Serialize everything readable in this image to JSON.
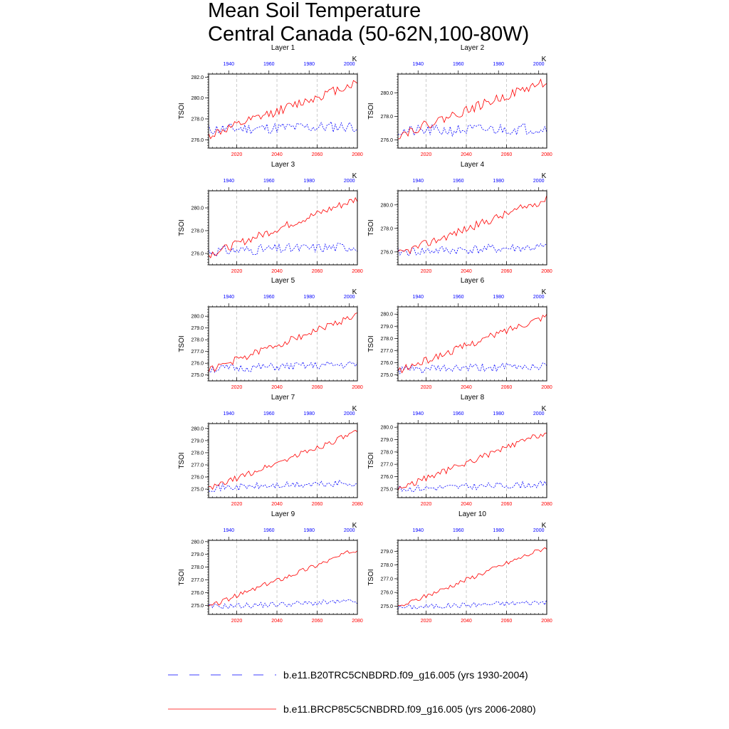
{
  "figure": {
    "title_line1": "Mean Soil Temperature",
    "title_line2": "Central Canada (50-62N,100-80W)",
    "units": "K",
    "ylabel": "TSOI",
    "colors": {
      "historical": "#0000ff",
      "future": "#ff0000",
      "gridline": "#aaaaaa"
    }
  },
  "legend": {
    "historical": "b.e11.B20TRC5CNBDRD.f09_g16.005 (yrs 1930-2004)",
    "future": "b.e11.BRCP85C5CNBDRD.f09_g16.005 (yrs 2006-2080)"
  },
  "chart_data": [
    {
      "type": "line",
      "title": "Layer 1",
      "ylabel": "TSOI",
      "units": "K",
      "xlim_bottom": [
        2006,
        2080
      ],
      "xticks_bottom": [
        "2020",
        "2040",
        "2060",
        "2080"
      ],
      "xlim_top": [
        1930,
        2004
      ],
      "xticks_top": [
        "1940",
        "1960",
        "1980",
        "2000"
      ],
      "ylim": [
        275.2,
        282.3
      ],
      "yticks": [
        "276.0",
        "278.0",
        "280.0",
        "282.0"
      ],
      "series": [
        {
          "name": "b.e11.B20TRC5CNBDRD.f09_g16.005 (yrs 1930-2004)",
          "axis": "top",
          "style": "dashed",
          "start": 277.0,
          "end": 277.3,
          "jitter": 1.1,
          "seed": 11
        },
        {
          "name": "b.e11.BRCP85C5CNBDRD.f09_g16.005 (yrs 2006-2080)",
          "axis": "bottom",
          "style": "solid",
          "start": 276.4,
          "end": 281.5,
          "jitter": 0.9,
          "seed": 12
        }
      ]
    },
    {
      "type": "line",
      "title": "Layer 2",
      "ylabel": "TSOI",
      "units": "K",
      "xlim_bottom": [
        2006,
        2080
      ],
      "xticks_bottom": [
        "2020",
        "2040",
        "2060",
        "2080"
      ],
      "xlim_top": [
        1930,
        2004
      ],
      "xticks_top": [
        "1940",
        "1960",
        "1980",
        "2000"
      ],
      "ylim": [
        275.3,
        281.6
      ],
      "yticks": [
        "276.0",
        "278.0",
        "280.0"
      ],
      "series": [
        {
          "name": "b.e11.B20TRC5CNBDRD.f09_g16.005 (yrs 1930-2004)",
          "axis": "top",
          "style": "dashed",
          "start": 276.7,
          "end": 277.0,
          "jitter": 1.0,
          "seed": 21
        },
        {
          "name": "b.e11.BRCP85C5CNBDRD.f09_g16.005 (yrs 2006-2080)",
          "axis": "bottom",
          "style": "solid",
          "start": 276.4,
          "end": 281.0,
          "jitter": 0.8,
          "seed": 22
        }
      ]
    },
    {
      "type": "line",
      "title": "Layer 3",
      "ylabel": "TSOI",
      "units": "K",
      "xlim_bottom": [
        2006,
        2080
      ],
      "xticks_bottom": [
        "2020",
        "2040",
        "2060",
        "2080"
      ],
      "xlim_top": [
        1930,
        2004
      ],
      "xticks_top": [
        "1940",
        "1960",
        "1980",
        "2000"
      ],
      "ylim": [
        275.0,
        281.5
      ],
      "yticks": [
        "276.0",
        "278.0",
        "280.0"
      ],
      "series": [
        {
          "name": "b.e11.B20TRC5CNBDRD.f09_g16.005 (yrs 1930-2004)",
          "axis": "top",
          "style": "dashed",
          "start": 276.2,
          "end": 276.6,
          "jitter": 0.9,
          "seed": 31
        },
        {
          "name": "b.e11.BRCP85C5CNBDRD.f09_g16.005 (yrs 2006-2080)",
          "axis": "bottom",
          "style": "solid",
          "start": 275.9,
          "end": 280.8,
          "jitter": 0.7,
          "seed": 32
        }
      ]
    },
    {
      "type": "line",
      "title": "Layer 4",
      "ylabel": "TSOI",
      "units": "K",
      "xlim_bottom": [
        2006,
        2080
      ],
      "xticks_bottom": [
        "2020",
        "2040",
        "2060",
        "2080"
      ],
      "xlim_top": [
        1930,
        2004
      ],
      "xticks_top": [
        "1940",
        "1960",
        "1980",
        "2000"
      ],
      "ylim": [
        274.9,
        281.2
      ],
      "yticks": [
        "276.0",
        "278.0",
        "280.0"
      ],
      "series": [
        {
          "name": "b.e11.B20TRC5CNBDRD.f09_g16.005 (yrs 1930-2004)",
          "axis": "top",
          "style": "dashed",
          "start": 276.0,
          "end": 276.4,
          "jitter": 0.8,
          "seed": 41
        },
        {
          "name": "b.e11.BRCP85C5CNBDRD.f09_g16.005 (yrs 2006-2080)",
          "axis": "bottom",
          "style": "solid",
          "start": 275.8,
          "end": 280.5,
          "jitter": 0.7,
          "seed": 42
        }
      ]
    },
    {
      "type": "line",
      "title": "Layer 5",
      "ylabel": "TSOI",
      "units": "K",
      "xlim_bottom": [
        2006,
        2080
      ],
      "xticks_bottom": [
        "2020",
        "2040",
        "2060",
        "2080"
      ],
      "xlim_top": [
        1930,
        2004
      ],
      "xticks_top": [
        "1940",
        "1960",
        "1980",
        "2000"
      ],
      "ylim": [
        274.5,
        280.8
      ],
      "yticks": [
        "275.0",
        "276.0",
        "277.0",
        "278.0",
        "279.0",
        "280.0"
      ],
      "series": [
        {
          "name": "b.e11.B20TRC5CNBDRD.f09_g16.005 (yrs 1930-2004)",
          "axis": "top",
          "style": "dashed",
          "start": 275.5,
          "end": 275.9,
          "jitter": 0.7,
          "seed": 51
        },
        {
          "name": "b.e11.BRCP85C5CNBDRD.f09_g16.005 (yrs 2006-2080)",
          "axis": "bottom",
          "style": "solid",
          "start": 275.4,
          "end": 280.1,
          "jitter": 0.6,
          "seed": 52
        }
      ]
    },
    {
      "type": "line",
      "title": "Layer 6",
      "ylabel": "TSOI",
      "units": "K",
      "xlim_bottom": [
        2006,
        2080
      ],
      "xticks_bottom": [
        "2020",
        "2040",
        "2060",
        "2080"
      ],
      "xlim_top": [
        1930,
        2004
      ],
      "xticks_top": [
        "1940",
        "1960",
        "1980",
        "2000"
      ],
      "ylim": [
        274.5,
        280.6
      ],
      "yticks": [
        "275.0",
        "276.0",
        "277.0",
        "278.0",
        "279.0",
        "280.0"
      ],
      "series": [
        {
          "name": "b.e11.B20TRC5CNBDRD.f09_g16.005 (yrs 1930-2004)",
          "axis": "top",
          "style": "dashed",
          "start": 275.4,
          "end": 275.7,
          "jitter": 0.7,
          "seed": 61
        },
        {
          "name": "b.e11.BRCP85C5CNBDRD.f09_g16.005 (yrs 2006-2080)",
          "axis": "bottom",
          "style": "solid",
          "start": 275.3,
          "end": 279.9,
          "jitter": 0.6,
          "seed": 62
        }
      ]
    },
    {
      "type": "line",
      "title": "Layer 7",
      "ylabel": "TSOI",
      "units": "K",
      "xlim_bottom": [
        2006,
        2080
      ],
      "xticks_bottom": [
        "2020",
        "2040",
        "2060",
        "2080"
      ],
      "xlim_top": [
        1930,
        2004
      ],
      "xticks_top": [
        "1940",
        "1960",
        "1980",
        "2000"
      ],
      "ylim": [
        274.3,
        280.4
      ],
      "yticks": [
        "275.0",
        "276.0",
        "277.0",
        "278.0",
        "279.0",
        "280.0"
      ],
      "series": [
        {
          "name": "b.e11.B20TRC5CNBDRD.f09_g16.005 (yrs 1930-2004)",
          "axis": "top",
          "style": "dashed",
          "start": 275.1,
          "end": 275.5,
          "jitter": 0.6,
          "seed": 71
        },
        {
          "name": "b.e11.BRCP85C5CNBDRD.f09_g16.005 (yrs 2006-2080)",
          "axis": "bottom",
          "style": "solid",
          "start": 275.0,
          "end": 279.7,
          "jitter": 0.5,
          "seed": 72
        }
      ]
    },
    {
      "type": "line",
      "title": "Layer 8",
      "ylabel": "TSOI",
      "units": "K",
      "xlim_bottom": [
        2006,
        2080
      ],
      "xticks_bottom": [
        "2020",
        "2040",
        "2060",
        "2080"
      ],
      "xlim_top": [
        1930,
        2004
      ],
      "xticks_top": [
        "1940",
        "1960",
        "1980",
        "2000"
      ],
      "ylim": [
        274.3,
        280.3
      ],
      "yticks": [
        "275.0",
        "276.0",
        "277.0",
        "278.0",
        "279.0",
        "280.0"
      ],
      "series": [
        {
          "name": "b.e11.B20TRC5CNBDRD.f09_g16.005 (yrs 1930-2004)",
          "axis": "top",
          "style": "dashed",
          "start": 275.0,
          "end": 275.4,
          "jitter": 0.55,
          "seed": 81
        },
        {
          "name": "b.e11.BRCP85C5CNBDRD.f09_g16.005 (yrs 2006-2080)",
          "axis": "bottom",
          "style": "solid",
          "start": 275.0,
          "end": 279.6,
          "jitter": 0.5,
          "seed": 82
        }
      ]
    },
    {
      "type": "line",
      "title": "Layer 9",
      "ylabel": "TSOI",
      "units": "K",
      "xlim_bottom": [
        2006,
        2080
      ],
      "xticks_bottom": [
        "2020",
        "2040",
        "2060",
        "2080"
      ],
      "xlim_top": [
        1930,
        2004
      ],
      "xticks_top": [
        "1940",
        "1960",
        "1980",
        "2000"
      ],
      "ylim": [
        274.3,
        280.1
      ],
      "yticks": [
        "275.0",
        "276.0",
        "277.0",
        "278.0",
        "279.0",
        "280.0"
      ],
      "series": [
        {
          "name": "b.e11.B20TRC5CNBDRD.f09_g16.005 (yrs 1930-2004)",
          "axis": "top",
          "style": "dashed",
          "start": 274.9,
          "end": 275.3,
          "jitter": 0.45,
          "seed": 91
        },
        {
          "name": "b.e11.BRCP85C5CNBDRD.f09_g16.005 (yrs 2006-2080)",
          "axis": "bottom",
          "style": "solid",
          "start": 274.9,
          "end": 279.4,
          "jitter": 0.4,
          "seed": 92
        }
      ]
    },
    {
      "type": "line",
      "title": "Layer 10",
      "ylabel": "TSOI",
      "units": "K",
      "xlim_bottom": [
        2006,
        2080
      ],
      "xticks_bottom": [
        "2020",
        "2040",
        "2060",
        "2080"
      ],
      "xlim_top": [
        1930,
        2004
      ],
      "xticks_top": [
        "1940",
        "1960",
        "1980",
        "2000"
      ],
      "ylim": [
        274.4,
        279.8
      ],
      "yticks": [
        "275.0",
        "276.0",
        "277.0",
        "278.0",
        "279.0"
      ],
      "series": [
        {
          "name": "b.e11.B20TRC5CNBDRD.f09_g16.005 (yrs 1930-2004)",
          "axis": "top",
          "style": "dashed",
          "start": 274.9,
          "end": 275.3,
          "jitter": 0.4,
          "seed": 101
        },
        {
          "name": "b.e11.BRCP85C5CNBDRD.f09_g16.005 (yrs 2006-2080)",
          "axis": "bottom",
          "style": "solid",
          "start": 274.9,
          "end": 279.3,
          "jitter": 0.35,
          "seed": 102
        }
      ]
    }
  ]
}
